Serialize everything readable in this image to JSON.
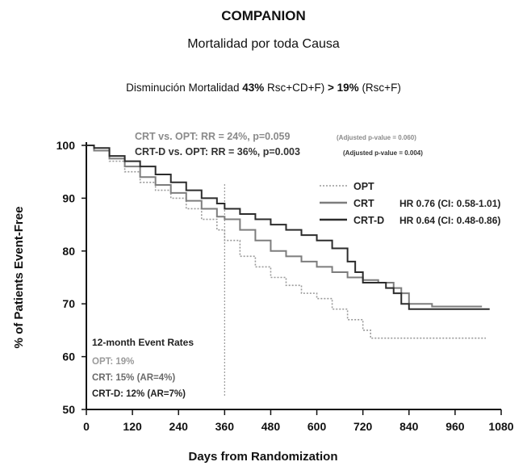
{
  "header": {
    "title": "COMPANION",
    "subtitle": "Mortalidad por toda Causa",
    "note_parts": [
      "Disminución Mortalidad ",
      "43%",
      " Rsc+CD+F) ",
      "> 19%",
      " (Rsc+F)"
    ]
  },
  "chart_data": {
    "type": "line",
    "xlabel": "Days from Randomization",
    "ylabel": "% of Patients Event-Free",
    "xlim": [
      0,
      1080
    ],
    "ylim": [
      50,
      100
    ],
    "xticks": [
      0,
      120,
      240,
      360,
      480,
      600,
      720,
      840,
      960,
      1080
    ],
    "yticks": [
      50,
      60,
      70,
      80,
      90,
      100
    ],
    "grid": false,
    "legend_position": "top-right",
    "vline_x": 360,
    "comparisons": [
      {
        "main": "CRT vs. OPT:  RR = 24%, p=0.059",
        "small": "(Adjusted p-value = 0.060)",
        "color": "#8a8a8a"
      },
      {
        "main": "CRT-D vs. OPT:  RR = 36%, p=0.003",
        "small": "(Adjusted p-value = 0.004)",
        "color": "#333333"
      }
    ],
    "event_rates": {
      "title": "12-month Event Rates",
      "lines": [
        {
          "text": "OPT: 19%",
          "color": "#9a9a9a"
        },
        {
          "text": "CRT: 15%  (AR=4%)",
          "color": "#6a6a6a"
        },
        {
          "text": "CRT-D: 12%  (AR=7%)",
          "color": "#222222"
        }
      ]
    },
    "series": [
      {
        "name": "OPT",
        "hr": "",
        "style": "dotted",
        "color": "#9a9a9a",
        "points": [
          [
            0,
            100
          ],
          [
            20,
            99
          ],
          [
            60,
            97
          ],
          [
            100,
            95
          ],
          [
            140,
            93
          ],
          [
            180,
            91.5
          ],
          [
            220,
            90
          ],
          [
            260,
            88
          ],
          [
            300,
            86
          ],
          [
            340,
            84
          ],
          [
            360,
            82
          ],
          [
            400,
            79
          ],
          [
            440,
            77
          ],
          [
            480,
            75
          ],
          [
            520,
            73.5
          ],
          [
            560,
            72
          ],
          [
            600,
            71
          ],
          [
            640,
            69
          ],
          [
            680,
            67
          ],
          [
            720,
            65
          ],
          [
            740,
            63.5
          ],
          [
            760,
            63.5
          ],
          [
            800,
            63.5
          ],
          [
            840,
            63.5
          ],
          [
            900,
            63.5
          ],
          [
            960,
            63.5
          ],
          [
            1040,
            63.5
          ]
        ]
      },
      {
        "name": "CRT",
        "hr": "HR  0.76 (CI: 0.58-1.01)",
        "style": "solid",
        "color": "#7d7d7d",
        "points": [
          [
            0,
            100
          ],
          [
            20,
            99
          ],
          [
            60,
            97.5
          ],
          [
            100,
            96
          ],
          [
            140,
            94
          ],
          [
            180,
            92.5
          ],
          [
            220,
            91
          ],
          [
            260,
            89.5
          ],
          [
            300,
            88
          ],
          [
            340,
            86.5
          ],
          [
            360,
            86
          ],
          [
            400,
            84
          ],
          [
            440,
            82
          ],
          [
            480,
            80
          ],
          [
            520,
            79
          ],
          [
            560,
            78
          ],
          [
            600,
            77
          ],
          [
            640,
            76
          ],
          [
            680,
            75
          ],
          [
            720,
            74.5
          ],
          [
            760,
            74
          ],
          [
            800,
            73
          ],
          [
            820,
            72
          ],
          [
            840,
            70
          ],
          [
            900,
            69.5
          ],
          [
            960,
            69.5
          ],
          [
            1030,
            69.5
          ]
        ]
      },
      {
        "name": "CRT-D",
        "hr": "HR  0.64 (CI: 0.48-0.86)",
        "style": "solid",
        "color": "#2c2c2c",
        "points": [
          [
            0,
            100
          ],
          [
            20,
            99.5
          ],
          [
            60,
            98
          ],
          [
            100,
            97
          ],
          [
            140,
            96
          ],
          [
            180,
            94.5
          ],
          [
            220,
            93
          ],
          [
            260,
            91.5
          ],
          [
            300,
            90
          ],
          [
            340,
            89
          ],
          [
            360,
            88
          ],
          [
            400,
            87
          ],
          [
            440,
            86
          ],
          [
            480,
            85
          ],
          [
            520,
            84
          ],
          [
            560,
            83
          ],
          [
            600,
            82
          ],
          [
            640,
            80.5
          ],
          [
            680,
            78
          ],
          [
            700,
            76
          ],
          [
            720,
            74
          ],
          [
            760,
            74
          ],
          [
            780,
            73
          ],
          [
            800,
            72
          ],
          [
            820,
            70
          ],
          [
            840,
            69
          ],
          [
            900,
            69
          ],
          [
            960,
            69
          ],
          [
            1050,
            69
          ]
        ]
      }
    ]
  }
}
